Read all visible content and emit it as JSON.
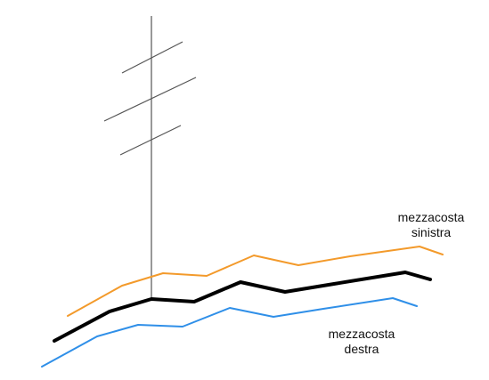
{
  "labels": {
    "left_slope": {
      "line1": "mezzacosta",
      "line2": "sinistra"
    },
    "right_slope": {
      "line1": "mezzacosta",
      "line2": "destra"
    }
  },
  "colors": {
    "left_slope_line": "#f39a2b",
    "center_line": "#000000",
    "right_slope_line": "#2f8fe8",
    "pole": "#555555"
  }
}
